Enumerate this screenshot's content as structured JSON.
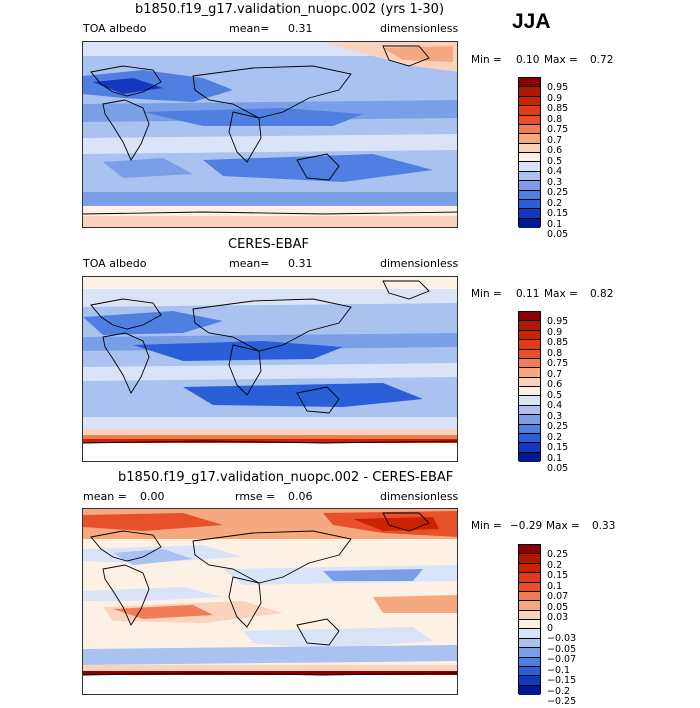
{
  "season": "JJA",
  "colors": {
    "warm5": "#8b0000",
    "warm4": "#cc2200",
    "warm3": "#e8502a",
    "warm2": "#f07d55",
    "warm1": "#f6a880",
    "warm0": "#fbd2bc",
    "neutral": "#fdf0e4",
    "cool0": "#d9e4f8",
    "cool1": "#a9c2f0",
    "cool2": "#7b9fe6",
    "cool3": "#4f7fe0",
    "cool4": "#2a5fd8",
    "cool5": "#1238c0",
    "cool6": "#001890"
  },
  "panels": [
    {
      "title": "b1850.f19_g17.validation_nuopc.002 (yrs 1-30)",
      "left_label": "TOA albedo",
      "mean_label": "mean=",
      "mean_value": "0.31",
      "units": "dimensionless",
      "min_label": "Min =",
      "min_value": "0.10",
      "max_label": "Max =",
      "max_value": "0.72",
      "colorbar_labels": [
        "0.95",
        "0.9",
        "0.85",
        "0.8",
        "0.75",
        "0.7",
        "0.6",
        "0.5",
        "0.4",
        "0.3",
        "0.25",
        "0.2",
        "0.15",
        "0.1",
        "0.05"
      ],
      "colorbar_colors": [
        "#8b0000",
        "#b01800",
        "#cc2200",
        "#e03c18",
        "#e8502a",
        "#f07d55",
        "#f6a880",
        "#fbd2bc",
        "#fdf0e4",
        "#d9e4f8",
        "#a9c2f0",
        "#7b9fe6",
        "#4f7fe0",
        "#2a5fd8",
        "#1238c0",
        "#001890"
      ]
    },
    {
      "title": "CERES-EBAF",
      "left_label": "TOA albedo",
      "mean_label": "mean=",
      "mean_value": "0.31",
      "units": "dimensionless",
      "min_label": "Min =",
      "min_value": "0.11",
      "max_label": "Max =",
      "max_value": "0.82",
      "colorbar_labels": [
        "0.95",
        "0.9",
        "0.85",
        "0.8",
        "0.75",
        "0.7",
        "0.6",
        "0.5",
        "0.4",
        "0.3",
        "0.25",
        "0.2",
        "0.15",
        "0.1",
        "0.05"
      ],
      "colorbar_colors": [
        "#8b0000",
        "#b01800",
        "#cc2200",
        "#e03c18",
        "#e8502a",
        "#f07d55",
        "#f6a880",
        "#fbd2bc",
        "#fdf0e4",
        "#d9e4f8",
        "#a9c2f0",
        "#7b9fe6",
        "#4f7fe0",
        "#2a5fd8",
        "#1238c0",
        "#001890"
      ]
    },
    {
      "title": "b1850.f19_g17.validation_nuopc.002 - CERES-EBAF",
      "left_label": "mean =",
      "mean_label": "",
      "mean_value": "0.00",
      "rmse_label": "rmse =",
      "rmse_value": "0.06",
      "units": "dimensionless",
      "min_label": "Min =",
      "min_value": "−0.29",
      "max_label": "Max =",
      "max_value": "0.33",
      "colorbar_labels": [
        "0.25",
        "0.2",
        "0.15",
        "0.1",
        "0.07",
        "0.05",
        "0.03",
        "0",
        "−0.03",
        "−0.05",
        "−0.07",
        "−0.1",
        "−0.15",
        "−0.2",
        "−0.25"
      ],
      "colorbar_colors": [
        "#8b0000",
        "#b01800",
        "#cc2200",
        "#e03c18",
        "#e8502a",
        "#f07d55",
        "#f6a880",
        "#fbd2bc",
        "#fdf0e4",
        "#d9e4f8",
        "#a9c2f0",
        "#7b9fe6",
        "#4f7fe0",
        "#2a5fd8",
        "#1238c0",
        "#001890"
      ]
    }
  ]
}
